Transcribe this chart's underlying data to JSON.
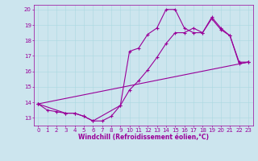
{
  "background_color": "#cce5ee",
  "line_color": "#990099",
  "marker": "+",
  "markersize": 3,
  "linewidth": 0.8,
  "xlabel": "Windchill (Refroidissement éolien,°C)",
  "xlabel_fontsize": 5.5,
  "tick_fontsize": 5,
  "xlim": [
    -0.5,
    23.5
  ],
  "ylim": [
    12.5,
    20.3
  ],
  "yticks": [
    13,
    14,
    15,
    16,
    17,
    18,
    19,
    20
  ],
  "xticks": [
    0,
    1,
    2,
    3,
    4,
    5,
    6,
    7,
    8,
    9,
    10,
    11,
    12,
    13,
    14,
    15,
    16,
    17,
    18,
    19,
    20,
    21,
    22,
    23
  ],
  "grid_color": "#aad8e0",
  "series": [
    {
      "x": [
        0,
        1,
        2,
        3,
        4,
        5,
        6,
        7,
        8,
        9,
        10,
        11,
        12,
        13,
        14,
        15,
        16,
        17,
        18,
        19,
        20,
        21,
        22,
        23
      ],
      "y": [
        13.9,
        13.5,
        13.4,
        13.3,
        13.3,
        13.1,
        12.8,
        12.8,
        13.1,
        13.8,
        17.3,
        17.5,
        18.4,
        18.8,
        20.0,
        20.0,
        18.8,
        18.5,
        18.5,
        19.4,
        18.7,
        18.3,
        16.5,
        16.6
      ]
    },
    {
      "x": [
        0,
        3,
        4,
        5,
        6,
        9,
        10,
        11,
        12,
        13,
        14,
        15,
        16,
        17,
        18,
        19,
        20,
        21,
        22,
        23
      ],
      "y": [
        13.9,
        13.3,
        13.3,
        13.1,
        12.8,
        13.8,
        14.8,
        15.4,
        16.1,
        16.9,
        17.8,
        18.5,
        18.5,
        18.8,
        18.5,
        19.5,
        18.8,
        18.3,
        16.6,
        16.6
      ]
    },
    {
      "x": [
        0,
        23
      ],
      "y": [
        13.9,
        16.6
      ]
    }
  ]
}
